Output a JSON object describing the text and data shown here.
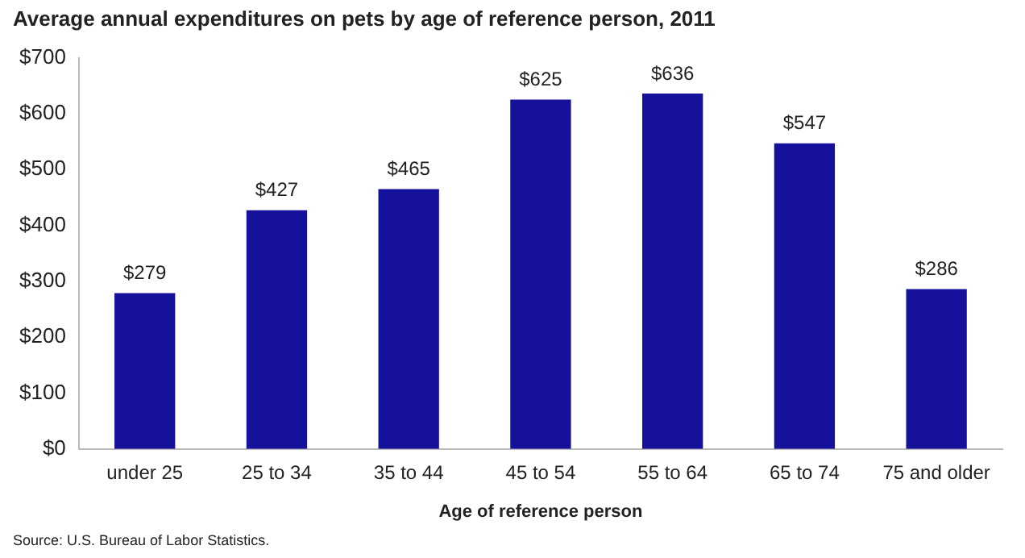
{
  "chart_data": {
    "type": "bar",
    "title": "Average annual expenditures on pets by age of reference person, 2011",
    "xlabel": "Age of reference person",
    "categories": [
      "under 25",
      "25 to 34",
      "35 to 44",
      "45 to 54",
      "55 to 64",
      "65 to 74",
      "75 and older"
    ],
    "values": [
      279,
      427,
      465,
      625,
      636,
      547,
      286
    ],
    "value_labels": [
      "$279",
      "$427",
      "$465",
      "$625",
      "$636",
      "$547",
      "$286"
    ],
    "color": "#16119b",
    "ylim": [
      0,
      700
    ],
    "yticks": [
      {
        "value": 0,
        "label": "$0"
      },
      {
        "value": 100,
        "label": "$100"
      },
      {
        "value": 200,
        "label": "$200"
      },
      {
        "value": 300,
        "label": "$300"
      },
      {
        "value": 400,
        "label": "$400"
      },
      {
        "value": 500,
        "label": "$500"
      },
      {
        "value": 600,
        "label": "$600"
      },
      {
        "value": 700,
        "label": "$700"
      }
    ],
    "grid": false,
    "legend": false,
    "annotations": [
      "Source: U.S. Bureau of Labor Statistics."
    ]
  }
}
